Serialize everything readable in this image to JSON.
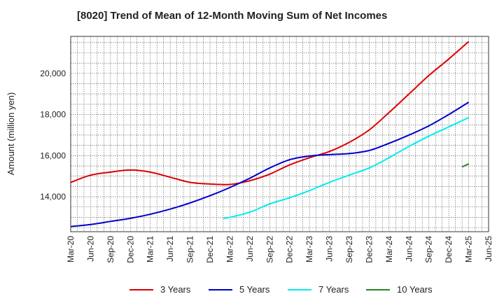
{
  "title": "[8020]  Trend of Mean of 12-Month Moving Sum of Net Incomes",
  "chart_data": {
    "type": "line",
    "title": "[8020]  Trend of Mean of 12-Month Moving Sum of Net Incomes",
    "xlabel": "",
    "ylabel": "Amount (million yen)",
    "x_ticks": [
      "Mar-20",
      "Jun-20",
      "Sep-20",
      "Dec-20",
      "Mar-21",
      "Jun-21",
      "Sep-21",
      "Dec-21",
      "Mar-22",
      "Jun-22",
      "Sep-22",
      "Dec-22",
      "Mar-23",
      "Jun-23",
      "Sep-23",
      "Dec-23",
      "Mar-24",
      "Jun-24",
      "Sep-24",
      "Dec-24",
      "Mar-25",
      "Jun-25"
    ],
    "y_ticks": [
      14000,
      16000,
      18000,
      20000
    ],
    "y_tick_labels": [
      "14,000",
      "16,000",
      "18,000",
      "20,000"
    ],
    "ylim": [
      12300,
      21800
    ],
    "grid": true,
    "legend_position": "bottom",
    "series": [
      {
        "name": "3 Years",
        "color": "#dd0000",
        "points": [
          [
            "Mar-20",
            14700
          ],
          [
            "Jun-20",
            15050
          ],
          [
            "Sep-20",
            15200
          ],
          [
            "Dec-20",
            15300
          ],
          [
            "Mar-21",
            15200
          ],
          [
            "Jun-21",
            14950
          ],
          [
            "Sep-21",
            14700
          ],
          [
            "Dec-21",
            14620
          ],
          [
            "Mar-22",
            14600
          ],
          [
            "Jun-22",
            14780
          ],
          [
            "Sep-22",
            15100
          ],
          [
            "Dec-22",
            15550
          ],
          [
            "Mar-23",
            15900
          ],
          [
            "Jun-23",
            16200
          ],
          [
            "Sep-23",
            16650
          ],
          [
            "Dec-23",
            17250
          ],
          [
            "Mar-24",
            18100
          ],
          [
            "Jun-24",
            19000
          ],
          [
            "Sep-24",
            19900
          ],
          [
            "Dec-24",
            20700
          ],
          [
            "Mar-25",
            21550
          ]
        ]
      },
      {
        "name": "5 Years",
        "color": "#0000cc",
        "points": [
          [
            "Mar-20",
            12550
          ],
          [
            "Jun-20",
            12650
          ],
          [
            "Sep-20",
            12800
          ],
          [
            "Dec-20",
            12950
          ],
          [
            "Mar-21",
            13150
          ],
          [
            "Jun-21",
            13400
          ],
          [
            "Sep-21",
            13700
          ],
          [
            "Dec-21",
            14050
          ],
          [
            "Mar-22",
            14450
          ],
          [
            "Jun-22",
            14900
          ],
          [
            "Sep-22",
            15400
          ],
          [
            "Dec-22",
            15800
          ],
          [
            "Mar-23",
            15980
          ],
          [
            "Jun-23",
            16050
          ],
          [
            "Sep-23",
            16100
          ],
          [
            "Dec-23",
            16250
          ],
          [
            "Mar-24",
            16600
          ],
          [
            "Jun-24",
            17000
          ],
          [
            "Sep-24",
            17450
          ],
          [
            "Dec-24",
            18000
          ],
          [
            "Mar-25",
            18600
          ]
        ]
      },
      {
        "name": "7 Years",
        "color": "#00eeee",
        "points": [
          [
            "Feb-22",
            12950
          ],
          [
            "Mar-22",
            13000
          ],
          [
            "Jun-22",
            13250
          ],
          [
            "Sep-22",
            13650
          ],
          [
            "Dec-22",
            13950
          ],
          [
            "Mar-23",
            14300
          ],
          [
            "Jun-23",
            14700
          ],
          [
            "Sep-23",
            15050
          ],
          [
            "Dec-23",
            15400
          ],
          [
            "Mar-24",
            15900
          ],
          [
            "Jun-24",
            16450
          ],
          [
            "Sep-24",
            16950
          ],
          [
            "Dec-24",
            17400
          ],
          [
            "Mar-25",
            17850
          ]
        ]
      },
      {
        "name": "10 Years",
        "color": "#228822",
        "points": [
          [
            "Feb-25",
            15450
          ],
          [
            "Mar-25",
            15600
          ]
        ]
      }
    ]
  }
}
